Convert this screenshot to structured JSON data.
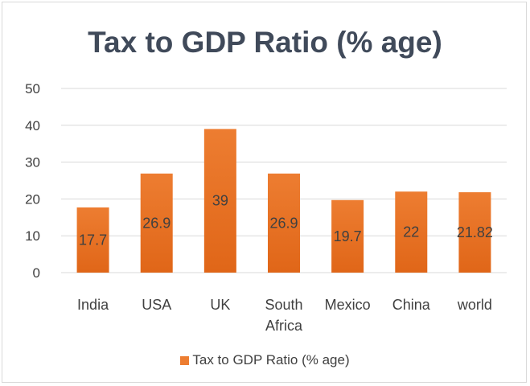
{
  "chart_data": {
    "type": "bar",
    "title": "Tax to GDP Ratio (% age)",
    "xlabel": "",
    "ylabel": "",
    "categories": [
      [
        "India"
      ],
      [
        "USA"
      ],
      [
        "UK"
      ],
      [
        "South",
        "Africa"
      ],
      [
        "Mexico"
      ],
      [
        "China"
      ],
      [
        "world"
      ]
    ],
    "series": [
      {
        "name": "Tax to GDP Ratio (% age)",
        "values": [
          17.7,
          26.9,
          39,
          26.9,
          19.7,
          22,
          21.82
        ],
        "labels": [
          "17.7",
          "26.9",
          "39",
          "26.9",
          "19.7",
          "22",
          "21.82"
        ],
        "color": "#ed7d31",
        "color_dark": "#e06618"
      }
    ],
    "ylim": [
      0,
      50
    ],
    "yticks": [
      0,
      10,
      20,
      30,
      40,
      50
    ],
    "grid": true,
    "legend": "bottom"
  }
}
